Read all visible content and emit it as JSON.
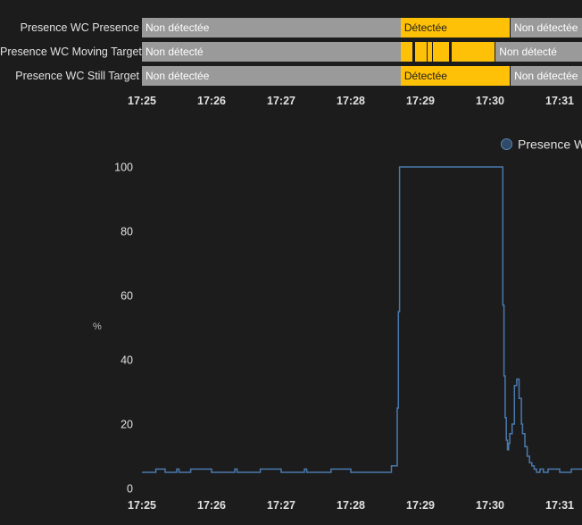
{
  "timeline": {
    "rows": [
      {
        "label": "Presence WC Presence",
        "segments": [
          {
            "state": "off",
            "label": "Non détectée",
            "start": "17:25",
            "end": "17:28:43"
          },
          {
            "state": "on",
            "label": "Détectée",
            "start": "17:28:43",
            "end": "17:30:17"
          },
          {
            "state": "off",
            "label": "Non détectée",
            "start": "17:30:17",
            "end": "17:31:40"
          }
        ]
      },
      {
        "label": "Presence WC Moving Target",
        "segments": [
          {
            "state": "off",
            "label": "Non détecté",
            "start": "17:25",
            "end": "17:28:43"
          },
          {
            "state": "on",
            "label": "",
            "start": "17:28:43",
            "end": "17:28:45"
          },
          {
            "state": "on",
            "label": "",
            "start": "17:28:46",
            "end": "17:28:53"
          },
          {
            "state": "on",
            "label": "",
            "start": "17:28:55",
            "end": "17:29:05"
          },
          {
            "state": "on",
            "label": "",
            "start": "17:29:06",
            "end": "17:29:10"
          },
          {
            "state": "on",
            "label": "",
            "start": "17:29:11",
            "end": "17:29:13"
          },
          {
            "state": "on",
            "label": "",
            "start": "17:29:14",
            "end": "17:29:25"
          },
          {
            "state": "on",
            "label": "",
            "start": "17:29:27",
            "end": "17:30:04"
          },
          {
            "state": "off",
            "label": "Non détecté",
            "start": "17:30:04",
            "end": "17:31:40"
          }
        ]
      },
      {
        "label": "Presence WC Still Target",
        "segments": [
          {
            "state": "off",
            "label": "Non détectée",
            "start": "17:25",
            "end": "17:28:43"
          },
          {
            "state": "on",
            "label": "Détectée",
            "start": "17:28:43",
            "end": "17:30:17"
          },
          {
            "state": "off",
            "label": "Non détectée",
            "start": "17:30:17",
            "end": "17:31:40"
          }
        ]
      }
    ],
    "ticks": [
      "17:25",
      "17:26",
      "17:27",
      "17:28",
      "17:29",
      "17:30",
      "17:31"
    ],
    "colors": {
      "off": "#9a9a9a",
      "on": "#ffc107"
    }
  },
  "chart_data": {
    "type": "line",
    "title": "",
    "xlabel": "",
    "ylabel": "%",
    "ylim": [
      0,
      100
    ],
    "yticks": [
      0,
      20,
      40,
      60,
      80,
      100
    ],
    "xticks": [
      "17:25",
      "17:26",
      "17:27",
      "17:28",
      "17:29",
      "17:30",
      "17:31"
    ],
    "xlim": [
      "17:25",
      "17:31:40"
    ],
    "step": true,
    "grid": false,
    "legend": "top-right",
    "series": [
      {
        "name": "Presence W",
        "color": "#4a79ad",
        "x": [
          "17:25:00",
          "17:25:10",
          "17:25:12",
          "17:25:20",
          "17:25:22",
          "17:25:30",
          "17:25:32",
          "17:25:40",
          "17:25:42",
          "17:26:00",
          "17:26:02",
          "17:26:20",
          "17:26:22",
          "17:26:40",
          "17:26:42",
          "17:27:00",
          "17:27:02",
          "17:27:20",
          "17:27:22",
          "17:27:40",
          "17:27:43",
          "17:28:00",
          "17:28:02",
          "17:28:20",
          "17:28:35",
          "17:28:40",
          "17:28:41",
          "17:28:42",
          "17:28:43",
          "17:29:00",
          "17:29:30",
          "17:30:00",
          "17:30:10",
          "17:30:11",
          "17:30:12",
          "17:30:13",
          "17:30:14",
          "17:30:15",
          "17:30:16",
          "17:30:17",
          "17:30:19",
          "17:30:21",
          "17:30:23",
          "17:30:25",
          "17:30:27",
          "17:30:28",
          "17:30:30",
          "17:30:32",
          "17:30:34",
          "17:30:36",
          "17:30:38",
          "17:30:40",
          "17:30:43",
          "17:30:46",
          "17:30:50",
          "17:30:55",
          "17:31:00",
          "17:31:10",
          "17:31:20",
          "17:31:30",
          "17:31:40"
        ],
        "y": [
          5,
          5,
          6,
          5,
          5,
          6,
          5,
          5,
          6,
          5,
          5,
          6,
          5,
          5,
          6,
          5,
          5,
          6,
          5,
          5,
          6,
          5,
          5,
          5,
          7,
          25,
          55,
          100,
          100,
          100,
          100,
          100,
          100,
          57,
          35,
          22,
          15,
          12,
          14,
          17,
          20,
          32,
          34,
          28,
          20,
          17,
          13,
          10,
          8,
          7,
          6,
          5,
          6,
          5,
          6,
          6,
          5,
          6,
          5,
          6,
          6
        ]
      }
    ]
  }
}
